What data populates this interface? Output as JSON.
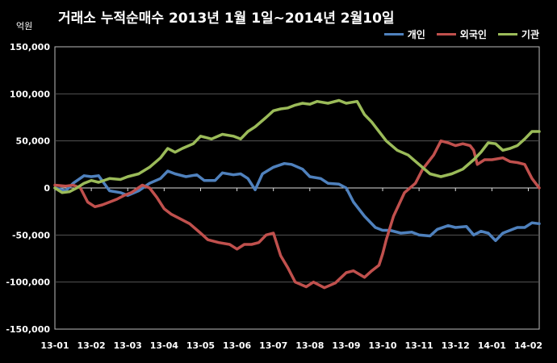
{
  "chart_data": {
    "type": "line",
    "title": "거래소 누적순매수 2013년 1월 1일~2014년 2월10일",
    "y_unit": "억원",
    "xlabel": "",
    "ylabel": "",
    "ylim": [
      -150000,
      150000
    ],
    "y_ticks": [
      -150000,
      -100000,
      -50000,
      0,
      50000,
      100000,
      150000
    ],
    "y_tick_labels": [
      "-150,000",
      "-100,000",
      "-50,000",
      "0",
      "50,000",
      "100,000",
      "150,000"
    ],
    "x_ticks": [
      0,
      1,
      2,
      3,
      4,
      5,
      6,
      7,
      8,
      9,
      10,
      11,
      12,
      13
    ],
    "x_tick_labels": [
      "13-01",
      "13-02",
      "13-03",
      "13-04",
      "13-05",
      "13-06",
      "13-07",
      "13-08",
      "13-09",
      "13-10",
      "13-11",
      "13-12",
      "14-01",
      "14-02"
    ],
    "xlim": [
      0,
      13.3
    ],
    "grid": "horizontal",
    "legend_position": "top-right",
    "series": [
      {
        "name": "개인",
        "color": "#4F81BD",
        "x": [
          0,
          0.3,
          0.5,
          0.8,
          1.0,
          1.2,
          1.5,
          1.8,
          2.0,
          2.3,
          2.6,
          2.9,
          3.1,
          3.3,
          3.6,
          3.9,
          4.1,
          4.4,
          4.6,
          4.9,
          5.1,
          5.3,
          5.5,
          5.7,
          6.0,
          6.3,
          6.5,
          6.8,
          7.0,
          7.3,
          7.5,
          7.8,
          8.0,
          8.2,
          8.5,
          8.8,
          9.0,
          9.2,
          9.5,
          9.8,
          10.0,
          10.3,
          10.5,
          10.8,
          11.0,
          11.3,
          11.5,
          11.7,
          11.9,
          12.1,
          12.3,
          12.5,
          12.7,
          12.9,
          13.1,
          13.3
        ],
        "values": [
          0,
          -3000,
          5000,
          13000,
          12000,
          13000,
          -3000,
          -5000,
          -8000,
          -3000,
          5000,
          10000,
          18000,
          15000,
          12000,
          14000,
          8000,
          8000,
          16000,
          14000,
          15000,
          10000,
          -2000,
          15000,
          22000,
          26000,
          25000,
          20000,
          12000,
          10000,
          5000,
          4000,
          0,
          -15000,
          -30000,
          -42000,
          -45000,
          -45000,
          -48000,
          -47000,
          -50000,
          -51000,
          -44000,
          -40000,
          -42000,
          -41000,
          -50000,
          -46000,
          -48000,
          -56000,
          -48000,
          -45000,
          -42000,
          -42000,
          -37000,
          -38000
        ]
      },
      {
        "name": "외국인",
        "color": "#C0504D",
        "x": [
          0,
          0.3,
          0.5,
          0.7,
          0.9,
          1.1,
          1.3,
          1.5,
          1.7,
          1.9,
          2.1,
          2.4,
          2.6,
          2.8,
          3.0,
          3.2,
          3.4,
          3.7,
          4.0,
          4.2,
          4.5,
          4.8,
          5.0,
          5.2,
          5.4,
          5.6,
          5.8,
          6.0,
          6.2,
          6.4,
          6.6,
          6.9,
          7.1,
          7.4,
          7.7,
          8.0,
          8.2,
          8.5,
          8.7,
          8.9,
          9.0,
          9.1,
          9.3,
          9.6,
          9.9,
          10.1,
          10.4,
          10.6,
          10.8,
          11.0,
          11.2,
          11.4,
          11.5,
          11.6,
          11.8,
          12.0,
          12.3,
          12.5,
          12.7,
          12.9,
          13.1,
          13.3
        ],
        "values": [
          3000,
          2000,
          3000,
          0,
          -15000,
          -20000,
          -18000,
          -15000,
          -12000,
          -8000,
          -5000,
          3000,
          0,
          -10000,
          -22000,
          -28000,
          -32000,
          -38000,
          -48000,
          -55000,
          -58000,
          -60000,
          -65000,
          -60000,
          -60000,
          -58000,
          -50000,
          -48000,
          -72000,
          -85000,
          -100000,
          -105000,
          -100000,
          -106000,
          -101000,
          -90000,
          -88000,
          -95000,
          -88000,
          -82000,
          -70000,
          -55000,
          -30000,
          -5000,
          5000,
          20000,
          35000,
          50000,
          48000,
          45000,
          47000,
          45000,
          40000,
          25000,
          30000,
          30000,
          32000,
          28000,
          27000,
          25000,
          10000,
          0
        ]
      },
      {
        "name": "기관",
        "color": "#9BBB59",
        "x": [
          0,
          0.2,
          0.4,
          0.6,
          0.8,
          1.0,
          1.2,
          1.5,
          1.8,
          2.0,
          2.3,
          2.6,
          2.9,
          3.1,
          3.3,
          3.5,
          3.8,
          4.0,
          4.3,
          4.6,
          4.9,
          5.1,
          5.3,
          5.5,
          5.8,
          6.0,
          6.2,
          6.4,
          6.6,
          6.8,
          7.0,
          7.2,
          7.5,
          7.8,
          8.0,
          8.3,
          8.5,
          8.7,
          8.8,
          8.9,
          9.1,
          9.4,
          9.7,
          10.0,
          10.3,
          10.6,
          10.9,
          11.2,
          11.5,
          11.7,
          11.9,
          12.1,
          12.3,
          12.5,
          12.7,
          12.9,
          13.1,
          13.3
        ],
        "values": [
          0,
          -5000,
          -4000,
          0,
          5000,
          8000,
          6000,
          10000,
          9000,
          12000,
          15000,
          22000,
          32000,
          42000,
          38000,
          42000,
          47000,
          55000,
          52000,
          57000,
          55000,
          52000,
          60000,
          65000,
          75000,
          82000,
          84000,
          85000,
          88000,
          90000,
          89000,
          92000,
          90000,
          93000,
          90000,
          92000,
          78000,
          70000,
          65000,
          60000,
          50000,
          40000,
          35000,
          25000,
          15000,
          12000,
          15000,
          20000,
          30000,
          38000,
          48000,
          47000,
          40000,
          42000,
          45000,
          52000,
          60000,
          60000
        ]
      }
    ]
  }
}
